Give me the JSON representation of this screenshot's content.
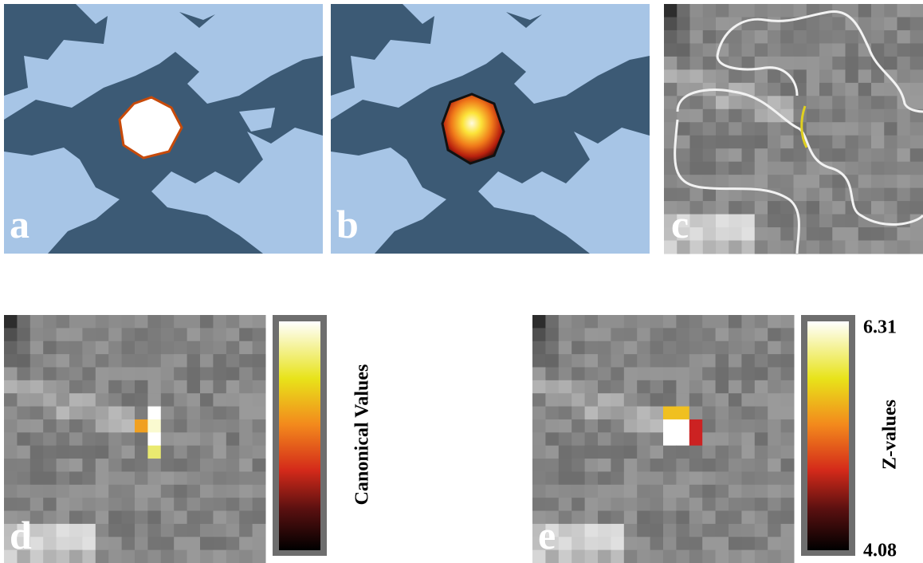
{
  "panels": [
    {
      "label": "a"
    },
    {
      "label": "b"
    },
    {
      "label": "c"
    },
    {
      "label": "d"
    },
    {
      "label": "e"
    }
  ],
  "colorbars": [
    {
      "title": "Canonical Values"
    },
    {
      "title": "Z-values",
      "max": 6.31,
      "min": 4.08
    }
  ]
}
